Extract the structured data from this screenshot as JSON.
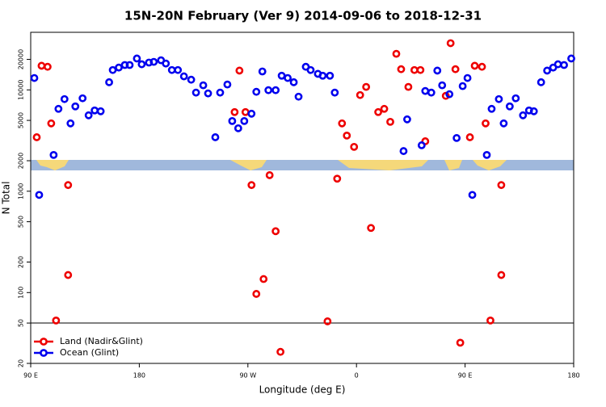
{
  "chart_data": {
    "type": "scatter",
    "title": "15N-20N February (Ver 9)   2014-09-06 to 2018-12-31",
    "x_label": "Longitude (deg E)",
    "y_label": "N Total",
    "log_y": true,
    "legend": "bottom-left",
    "xlim": [
      90,
      540
    ],
    "ylim": [
      20,
      37000
    ],
    "xticks": [
      {
        "value": 90,
        "label": "90 E"
      },
      {
        "value": 180,
        "label": "180"
      },
      {
        "value": 270,
        "label": "90 W"
      },
      {
        "value": 360,
        "label": "0"
      },
      {
        "value": 450,
        "label": "90 E"
      },
      {
        "value": 540,
        "label": "180"
      }
    ],
    "yticks": [
      20,
      50,
      100,
      200,
      500,
      1000,
      2000,
      5000,
      10000,
      20000
    ],
    "reference_line": 50,
    "series": [
      {
        "name": "Land (Nadir&Glint)",
        "color": "#ee0000",
        "x": [
          95,
          99,
          104,
          107,
          111,
          121,
          121,
          259,
          263,
          268,
          273,
          277,
          283,
          288,
          293,
          297,
          336,
          344,
          348,
          352,
          358,
          363,
          368,
          372,
          378,
          383,
          388,
          393,
          397,
          403,
          408,
          413,
          417,
          434,
          438,
          442,
          446,
          454,
          458,
          464,
          467,
          471,
          480,
          480
        ],
        "values": [
          3410,
          17300,
          16900,
          4670,
          53,
          1150,
          149,
          6040,
          15500,
          6040,
          1150,
          97,
          136,
          1440,
          403,
          26,
          52,
          1330,
          4670,
          3540,
          2740,
          8890,
          10700,
          434,
          6040,
          6500,
          4840,
          22700,
          16000,
          10700,
          15700,
          15700,
          3110,
          8730,
          28900,
          16000,
          32,
          3410,
          17300,
          16900,
          4670,
          53,
          1150,
          149
        ]
      },
      {
        "name": "Ocean (Glint)",
        "color": "#0000ee",
        "x": [
          93,
          97,
          109,
          113,
          118,
          123,
          127,
          133,
          138,
          143,
          148,
          155,
          158,
          163,
          168,
          172,
          178,
          182,
          188,
          192,
          198,
          202,
          207,
          212,
          217,
          223,
          227,
          233,
          237,
          243,
          247,
          253,
          257,
          262,
          267,
          273,
          277,
          282,
          287,
          293,
          298,
          303,
          308,
          312,
          318,
          322,
          328,
          332,
          338,
          342,
          399,
          402,
          414,
          417,
          422,
          427,
          431,
          437,
          443,
          448,
          452,
          456,
          468,
          472,
          478,
          482,
          487,
          492,
          498,
          503,
          507,
          513,
          518,
          523,
          527,
          532,
          538
        ],
        "values": [
          13100,
          920,
          2280,
          6500,
          8110,
          4670,
          6870,
          8260,
          5610,
          6270,
          6150,
          11900,
          15700,
          16600,
          17600,
          17600,
          20400,
          17900,
          18600,
          18900,
          19600,
          18200,
          15700,
          15700,
          13600,
          12600,
          9400,
          11100,
          9230,
          3410,
          9400,
          11300,
          4930,
          4180,
          4930,
          5820,
          9570,
          15200,
          9930,
          9930,
          13800,
          13100,
          11900,
          8570,
          16900,
          15700,
          14400,
          13800,
          13800,
          9400,
          2490,
          5120,
          2840,
          9750,
          9400,
          15500,
          11100,
          9060,
          3350,
          10900,
          13100,
          920,
          2280,
          6500,
          8110,
          4670,
          6870,
          8260,
          5610,
          6270,
          6150,
          11900,
          15500,
          16600,
          17900,
          17600,
          20400
        ]
      }
    ]
  }
}
